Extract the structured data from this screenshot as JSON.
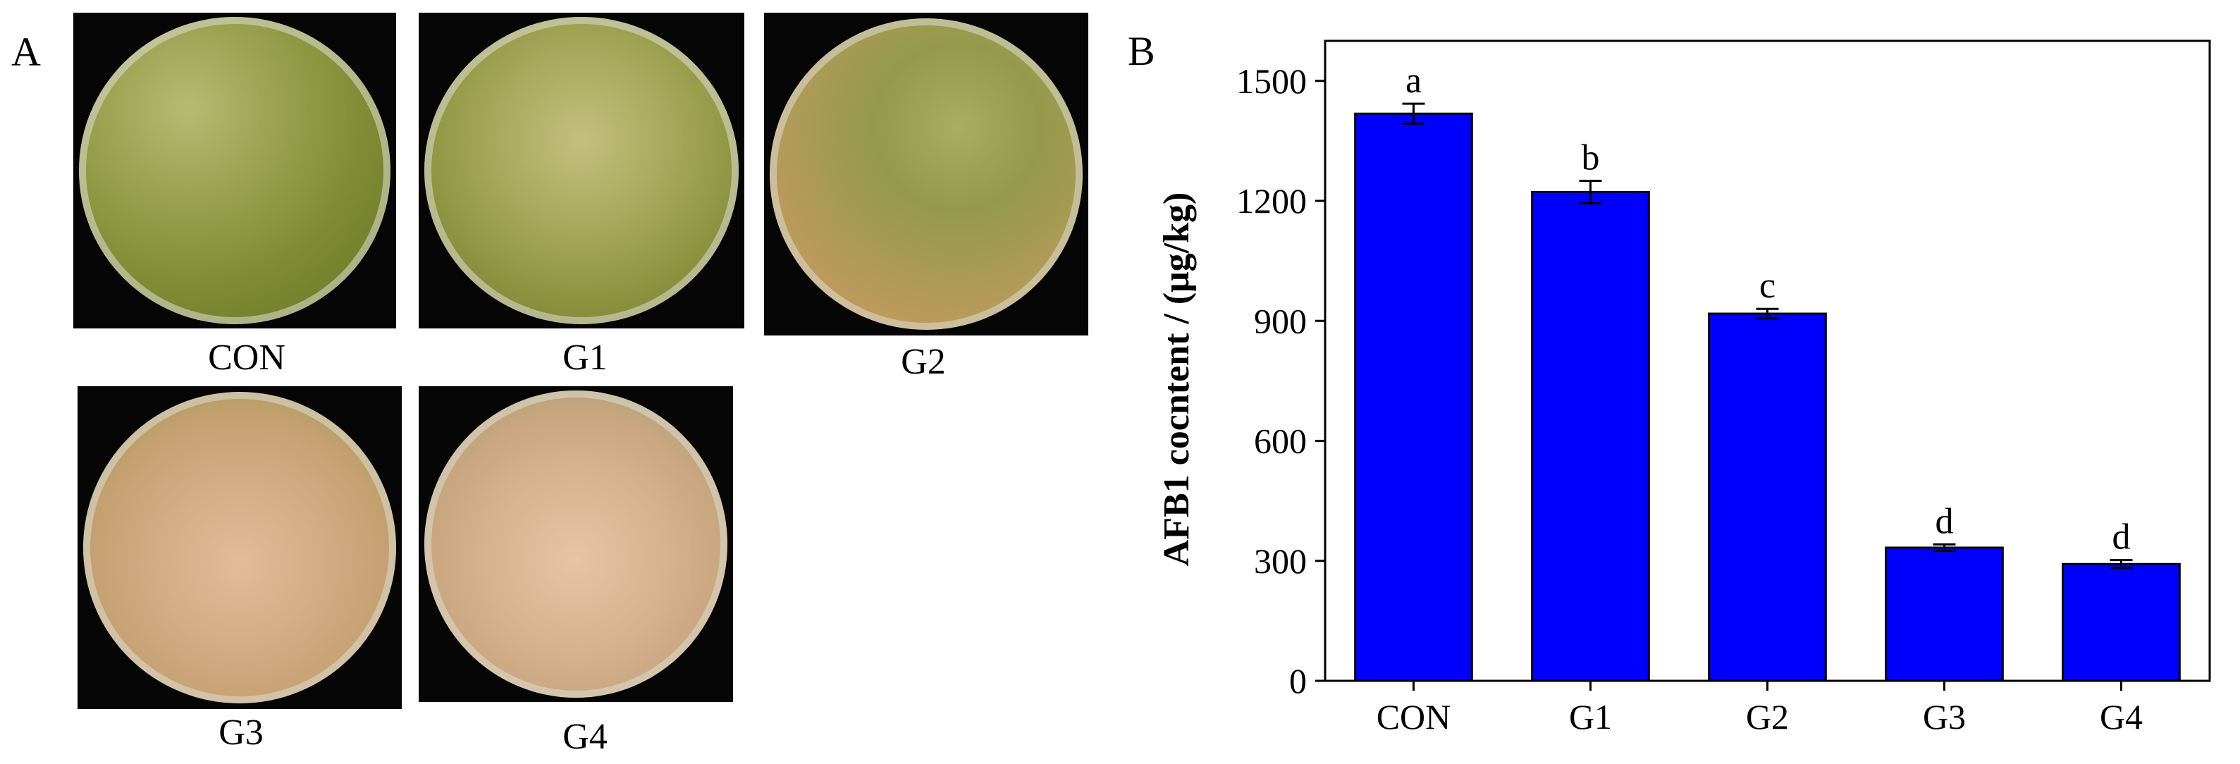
{
  "panels": {
    "a_label": "A",
    "b_label": "B"
  },
  "photos": [
    {
      "label": "CON",
      "appearance": "green-mold"
    },
    {
      "label": "G1",
      "appearance": "green-mold"
    },
    {
      "label": "G2",
      "appearance": "green-tan-mold"
    },
    {
      "label": "G3",
      "appearance": "tan-mold"
    },
    {
      "label": "G4",
      "appearance": "tan-mold"
    }
  ],
  "colors": {
    "bar_fill": "#0000ff",
    "bar_stroke": "#000000",
    "green_mold": "#8a9a3e",
    "tan_mold": "#c9a07a"
  },
  "chart_data": {
    "type": "bar",
    "title": "",
    "xlabel": "",
    "ylabel": "AFB1 cocntent / (μg/kg)",
    "categories": [
      "CON",
      "G1",
      "G2",
      "G3",
      "G4"
    ],
    "values": [
      1418,
      1222,
      918,
      333,
      292
    ],
    "errors": [
      25,
      28,
      12,
      8,
      10
    ],
    "significance": [
      "a",
      "b",
      "c",
      "d",
      "d"
    ],
    "ylim": [
      0,
      1600
    ],
    "yticks": [
      0,
      300,
      600,
      900,
      1200,
      1500
    ],
    "ytick_labels": [
      "0",
      "300",
      "600",
      "900",
      "1200",
      "1500"
    ],
    "grid": false,
    "legend": "none"
  }
}
